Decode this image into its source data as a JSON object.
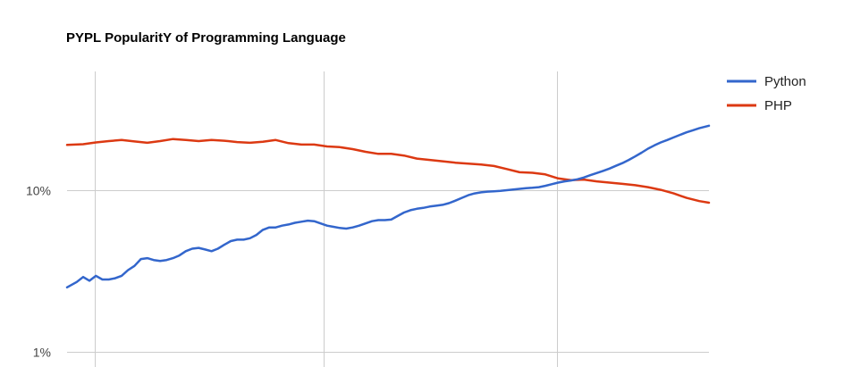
{
  "chart_data": {
    "type": "line",
    "title": "PYPL PopularitY of Programming Language",
    "xlabel": "",
    "ylabel": "",
    "y_scale": "log",
    "ylim": [
      0.8,
      55
    ],
    "y_ticks": [
      {
        "value": 1,
        "label": "1%"
      },
      {
        "value": 10,
        "label": "10%"
      }
    ],
    "x_range": [
      0,
      100
    ],
    "x_gridlines": [
      4.3,
      40,
      76.3
    ],
    "grid": true,
    "legend_position": "right",
    "series": [
      {
        "name": "Python",
        "color": "#3366cc",
        "x": [
          0,
          1.5,
          2.5,
          3.5,
          4.5,
          5.5,
          6.5,
          7.5,
          8.5,
          9.5,
          10.5,
          11.5,
          12.5,
          13.5,
          14.5,
          15.5,
          16.5,
          17.5,
          18.5,
          19.5,
          20.5,
          21.5,
          22.5,
          23.5,
          24.5,
          25.5,
          26.5,
          27.5,
          28.5,
          29.5,
          30.5,
          31.5,
          32.5,
          33.5,
          34.5,
          35.5,
          36.5,
          37.5,
          38.5,
          39.5,
          40.5,
          41.5,
          42.5,
          43.5,
          44.5,
          45.5,
          46.5,
          47.5,
          48.5,
          49.5,
          50.5,
          51.5,
          52.5,
          53.5,
          54.5,
          55.5,
          56.5,
          57.5,
          58.5,
          59.5,
          60.5,
          61.5,
          62.5,
          63.5,
          64.5,
          65.5,
          66.5,
          67.5,
          68.5,
          69.5,
          70.5,
          71.5,
          72.5,
          73.5,
          74.5,
          75.5,
          76.5,
          77.5,
          78.5,
          79.5,
          80.5,
          81.5,
          82.5,
          83.5,
          84.5,
          85.5,
          86.5,
          87.5,
          88.5,
          89.5,
          90.5,
          91.5,
          92.5,
          93.5,
          94.5,
          95.5,
          96.5,
          97.5,
          98.5,
          100
        ],
        "y": [
          2.5,
          2.7,
          2.9,
          2.75,
          2.95,
          2.8,
          2.8,
          2.85,
          2.95,
          3.2,
          3.4,
          3.75,
          3.8,
          3.7,
          3.65,
          3.7,
          3.8,
          3.95,
          4.2,
          4.35,
          4.4,
          4.3,
          4.2,
          4.35,
          4.6,
          4.85,
          4.95,
          4.95,
          5.05,
          5.3,
          5.7,
          5.9,
          5.9,
          6.05,
          6.15,
          6.3,
          6.4,
          6.5,
          6.45,
          6.25,
          6.05,
          5.95,
          5.85,
          5.8,
          5.9,
          6.05,
          6.25,
          6.45,
          6.55,
          6.55,
          6.6,
          6.95,
          7.3,
          7.55,
          7.7,
          7.8,
          7.95,
          8.05,
          8.15,
          8.35,
          8.65,
          9.0,
          9.35,
          9.6,
          9.75,
          9.85,
          9.9,
          9.95,
          10.05,
          10.15,
          10.25,
          10.35,
          10.4,
          10.5,
          10.7,
          10.95,
          11.2,
          11.4,
          11.55,
          11.75,
          12.05,
          12.45,
          12.85,
          13.25,
          13.7,
          14.25,
          14.8,
          15.5,
          16.3,
          17.2,
          18.2,
          19.1,
          19.9,
          20.6,
          21.4,
          22.2,
          23.0,
          23.7,
          24.4,
          25.3
        ]
      },
      {
        "name": "PHP",
        "color": "#dc3912",
        "x": [
          0,
          2.5,
          4.5,
          6.5,
          8.5,
          10.5,
          12.5,
          14.5,
          16.5,
          18.5,
          20.5,
          22.5,
          24.5,
          26.5,
          28.5,
          30.5,
          32.5,
          34.5,
          36.5,
          38.5,
          40.5,
          42.5,
          44.5,
          46.5,
          48.5,
          50.5,
          52.5,
          54.5,
          56.5,
          58.5,
          60.5,
          62.5,
          64.5,
          66.5,
          68.5,
          70.5,
          72.5,
          74.5,
          76.5,
          78.5,
          80.5,
          82.5,
          84.5,
          86.5,
          88.5,
          90.5,
          92.5,
          94.5,
          96.5,
          98.5,
          100
        ],
        "y": [
          19.2,
          19.4,
          19.9,
          20.3,
          20.6,
          20.2,
          19.8,
          20.3,
          20.9,
          20.6,
          20.3,
          20.6,
          20.4,
          20.0,
          19.8,
          20.1,
          20.6,
          19.7,
          19.3,
          19.3,
          18.8,
          18.6,
          18.1,
          17.4,
          16.9,
          16.9,
          16.5,
          15.8,
          15.5,
          15.2,
          14.9,
          14.7,
          14.5,
          14.2,
          13.6,
          13.0,
          12.9,
          12.6,
          11.9,
          11.6,
          11.7,
          11.4,
          11.2,
          11.0,
          10.8,
          10.5,
          10.1,
          9.6,
          9.0,
          8.6,
          8.4
        ]
      }
    ]
  }
}
